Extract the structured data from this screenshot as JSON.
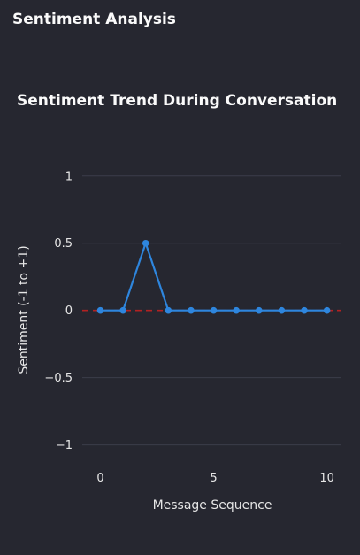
{
  "section": {
    "title": "Sentiment Analysis"
  },
  "chart_data": {
    "type": "line",
    "title": "Sentiment Trend During Conversation",
    "xlabel": "Message Sequence",
    "ylabel": "Sentiment (-1 to +1)",
    "x": [
      0,
      1,
      2,
      3,
      4,
      5,
      6,
      7,
      8,
      9,
      10
    ],
    "values": [
      0,
      0,
      0.5,
      0,
      0,
      0,
      0,
      0,
      0,
      0,
      0
    ],
    "xlim": [
      -0.8,
      10.6
    ],
    "ylim": [
      -1.2,
      1.15
    ],
    "x_ticks": [
      0,
      5,
      10
    ],
    "x_tick_labels": [
      "0",
      "5",
      "10"
    ],
    "y_ticks": [
      -1,
      -0.5,
      0,
      0.5,
      1
    ],
    "y_tick_labels": [
      "−1",
      "−0.5",
      "0",
      "0.5",
      "1"
    ],
    "reference_line": {
      "y": 0,
      "style": "dashed",
      "color": "#b22222"
    },
    "grid": true,
    "line_color": "#2e86de",
    "marker_color": "#2e86de"
  }
}
